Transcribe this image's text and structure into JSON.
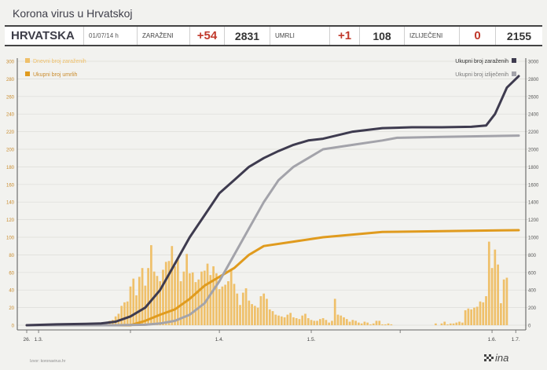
{
  "title": "Korona virus u Hrvatskoj",
  "stats": {
    "region": "HRVATSKA",
    "date": "01/07/14 h",
    "infected_label": "ZARAŽENI",
    "infected_delta": "+54",
    "infected_total": "2831",
    "deaths_label": "UMRLI",
    "deaths_delta": "+1",
    "deaths_total": "108",
    "recovered_label": "IZLIJEČENI",
    "recovered_delta": "0",
    "recovered_total": "2155"
  },
  "source": "Izvor: koronavirus.hr",
  "logo_text": "ina",
  "colors": {
    "infected": "#3e3b4f",
    "recovered": "#a3a3aa",
    "deaths": "#e09b1e",
    "daily": "#efc06a",
    "delta": "#c0392b"
  },
  "chart_data": {
    "type": "bar+line",
    "x_tick_labels": [
      "26.",
      "1.3.",
      "1.4.",
      "1.5.",
      "1.6.",
      "1.7."
    ],
    "y_left": {
      "ylim": [
        0,
        300
      ],
      "ticks": [
        0,
        20,
        40,
        60,
        80,
        100,
        120,
        140,
        160,
        180,
        200,
        220,
        240,
        260,
        280,
        300
      ]
    },
    "y_right": {
      "ylim": [
        0,
        3000
      ],
      "ticks": [
        0,
        200,
        400,
        600,
        800,
        1000,
        1200,
        1400,
        1600,
        1800,
        2000,
        2200,
        2400,
        2600,
        2800,
        3000
      ]
    },
    "legend_left": [
      {
        "name": "Dnevni broj zaraženih",
        "color": "#efc06a"
      },
      {
        "name": "Ukupni broj umrlih",
        "color": "#e09b1e"
      }
    ],
    "legend_right": [
      {
        "name": "Ukupni broj zaraženih",
        "color": "#3e3b4f"
      },
      {
        "name": "Ukupni broj izliječenih",
        "color": "#a3a3aa"
      }
    ],
    "daily_infected": [
      0,
      0,
      0,
      0,
      0,
      0,
      0,
      0,
      0,
      0,
      0,
      0,
      0,
      0,
      0,
      0,
      0,
      0,
      0,
      0,
      0,
      0,
      0,
      1,
      1,
      2,
      3,
      4,
      5,
      6,
      10,
      13,
      22,
      26,
      27,
      44,
      53,
      34,
      55,
      65,
      45,
      65,
      91,
      61,
      56,
      50,
      63,
      72,
      73,
      90,
      67,
      75,
      50,
      61,
      81,
      59,
      60,
      49,
      52,
      61,
      62,
      70,
      57,
      67,
      59,
      41,
      44,
      46,
      50,
      64,
      47,
      36,
      23,
      37,
      42,
      28,
      24,
      22,
      20,
      33,
      36,
      30,
      18,
      16,
      12,
      11,
      10,
      9,
      12,
      14,
      9,
      8,
      7,
      11,
      13,
      8,
      6,
      5,
      5,
      7,
      8,
      6,
      3,
      5,
      30,
      12,
      11,
      9,
      7,
      4,
      6,
      5,
      3,
      2,
      4,
      3,
      1,
      2,
      5,
      5,
      1,
      1,
      2,
      1,
      0,
      0,
      0,
      0,
      0,
      0,
      0,
      0,
      0,
      0,
      0,
      0,
      0,
      0,
      2,
      0,
      2,
      4,
      1,
      2,
      2,
      3,
      4,
      3,
      17,
      19,
      18,
      20,
      21,
      27,
      26,
      33,
      95,
      65,
      86,
      69,
      25,
      52,
      54
    ],
    "total_infected": [
      [
        0,
        0
      ],
      [
        10,
        10
      ],
      [
        20,
        15
      ],
      [
        25,
        20
      ],
      [
        30,
        40
      ],
      [
        35,
        100
      ],
      [
        40,
        200
      ],
      [
        45,
        400
      ],
      [
        50,
        700
      ],
      [
        55,
        1000
      ],
      [
        60,
        1250
      ],
      [
        65,
        1500
      ],
      [
        70,
        1650
      ],
      [
        75,
        1800
      ],
      [
        80,
        1900
      ],
      [
        85,
        1980
      ],
      [
        90,
        2050
      ],
      [
        95,
        2100
      ],
      [
        100,
        2120
      ],
      [
        110,
        2200
      ],
      [
        120,
        2240
      ],
      [
        130,
        2250
      ],
      [
        140,
        2250
      ],
      [
        150,
        2255
      ],
      [
        155,
        2270
      ],
      [
        158,
        2400
      ],
      [
        160,
        2550
      ],
      [
        162,
        2700
      ],
      [
        166,
        2831
      ]
    ],
    "total_recovered": [
      [
        0,
        0
      ],
      [
        30,
        0
      ],
      [
        40,
        5
      ],
      [
        45,
        20
      ],
      [
        50,
        50
      ],
      [
        55,
        120
      ],
      [
        60,
        250
      ],
      [
        65,
        500
      ],
      [
        70,
        800
      ],
      [
        75,
        1100
      ],
      [
        80,
        1400
      ],
      [
        85,
        1650
      ],
      [
        90,
        1800
      ],
      [
        95,
        1900
      ],
      [
        100,
        2000
      ],
      [
        110,
        2050
      ],
      [
        120,
        2100
      ],
      [
        125,
        2130
      ],
      [
        140,
        2140
      ],
      [
        166,
        2155
      ]
    ],
    "total_deaths": [
      [
        0,
        0
      ],
      [
        35,
        0
      ],
      [
        40,
        5
      ],
      [
        45,
        12
      ],
      [
        50,
        18
      ],
      [
        55,
        30
      ],
      [
        60,
        45
      ],
      [
        65,
        55
      ],
      [
        70,
        65
      ],
      [
        75,
        80
      ],
      [
        80,
        90
      ],
      [
        90,
        95
      ],
      [
        100,
        100
      ],
      [
        110,
        103
      ],
      [
        120,
        106
      ],
      [
        140,
        107
      ],
      [
        166,
        108
      ]
    ]
  }
}
